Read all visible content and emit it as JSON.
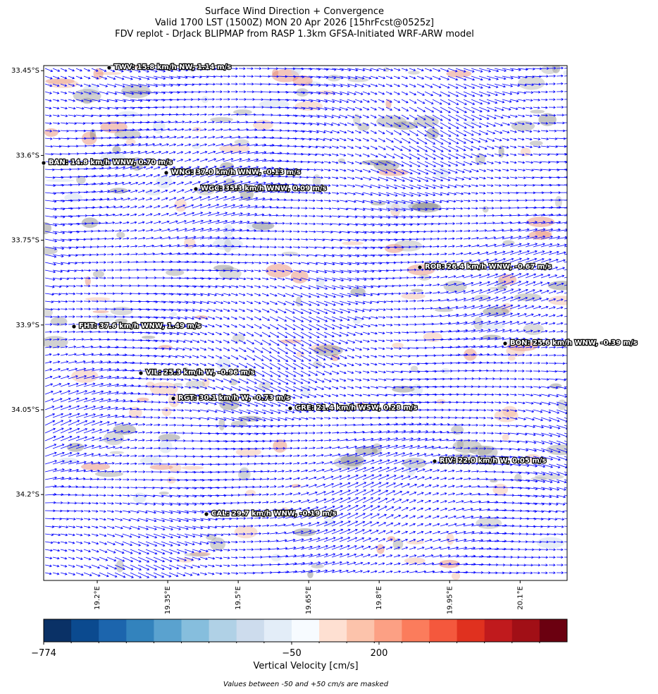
{
  "chart_data": {
    "type": "wind-map",
    "title": [
      "Surface Wind Direction + Convergence",
      "Valid 1700 LST (1500Z) MON 20 Apr 2026 [15hrFcst@0525z]",
      "FDV replot - DrJack BLIPMAP from RASP 1.3km GFSA-Initiated WRF-ARW model"
    ],
    "ylim": [
      33.441,
      34.352
    ],
    "yticks": [
      {
        "value": 33.45,
        "label": "33.45°S"
      },
      {
        "value": 33.6,
        "label": "33.6°S"
      },
      {
        "value": 33.75,
        "label": "33.75°S"
      },
      {
        "value": 33.9,
        "label": "33.9°S"
      },
      {
        "value": 34.05,
        "label": "34.05°S"
      },
      {
        "value": 34.2,
        "label": "34.2°S"
      }
    ],
    "xlim": [
      19.086,
      20.2
    ],
    "xticks": [
      {
        "value": 19.2,
        "label": "19.2°E"
      },
      {
        "value": 19.35,
        "label": "19.35°E"
      },
      {
        "value": 19.5,
        "label": "19.5°E"
      },
      {
        "value": 19.65,
        "label": "19.65°E"
      },
      {
        "value": 19.8,
        "label": "19.8°E"
      },
      {
        "value": 19.95,
        "label": "19.95°E"
      },
      {
        "value": 20.1,
        "label": "20.1°E"
      }
    ],
    "vector_color": "#0000ff",
    "stations": [
      "TWV: 15.8 km/h NW, 1.14 m/s",
      "BAN: 14.8 km/h WNW, 0.70 m/s",
      "WNG: 37.0 km/h WNW, -0.13 m/s",
      "WGC: 35.3 km/h WNW, 0.09 m/s",
      "ROB: 26.4 km/h WNW, -0.67 m/s",
      "FHT: 37.6 km/h WNW, 1.49 m/s",
      "BON: 25.6 km/h WNW, -0.39 m/s",
      "VIL: 25.3 km/h W, -0.96 m/s",
      "RGT: 30.1 km/h W, -0.73 m/s",
      "GRE: 21.4 km/h WSW, 0.28 m/s",
      "RIV: 22.0 km/h W, 0.05 m/s",
      "CAL: 29.7 km/h WNW, -0.19 m/s"
    ],
    "colorbar": {
      "colors": [
        "#0a3166",
        "#0b4a8f",
        "#1c65ad",
        "#3383bd",
        "#5aa2cf",
        "#86bedd",
        "#b0d1e6",
        "#cddced",
        "#e3edf8",
        "#f7fbff",
        "#fee0d2",
        "#fcc3ab",
        "#fca084",
        "#fb7c5c",
        "#f4583d",
        "#e0311f",
        "#c01a1d",
        "#a10f16",
        "#6b0010"
      ],
      "ticks": [
        {
          "value": -774,
          "label": "−774"
        },
        {
          "value": -50,
          "label": "−50"
        },
        200
      ],
      "label": "Vertical Velocity [cm/s]"
    },
    "note": "Values between -50 and +50 cm/s are masked"
  }
}
